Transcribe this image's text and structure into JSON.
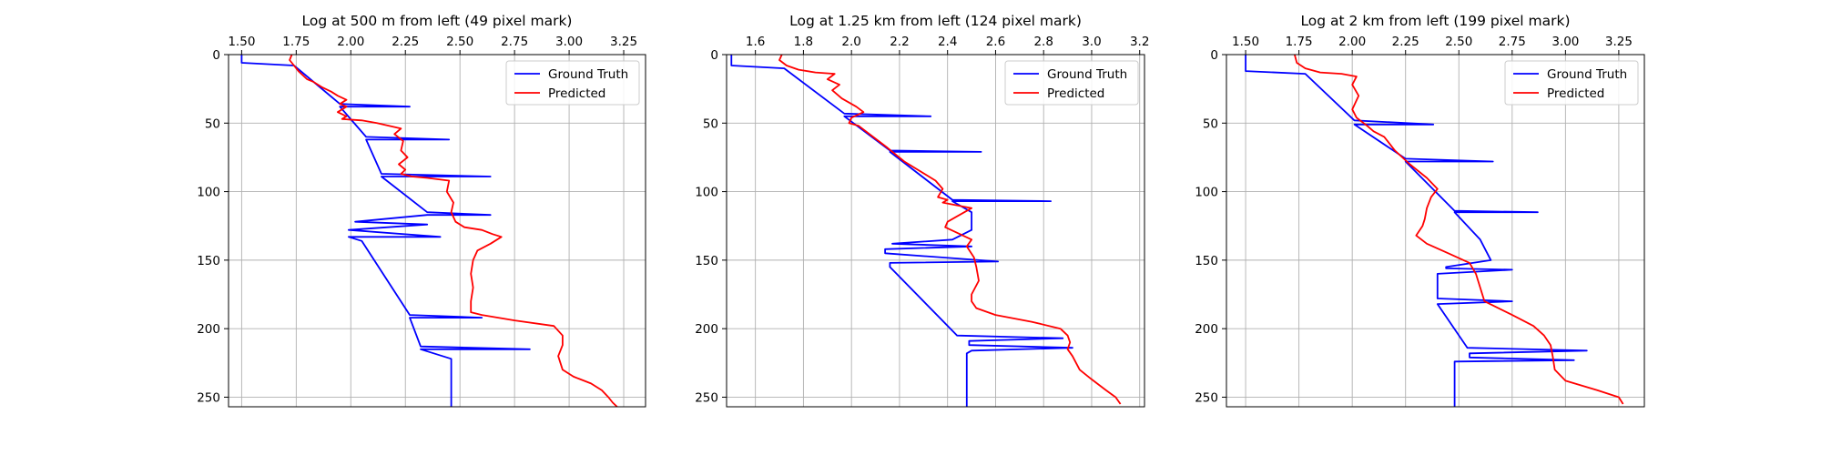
{
  "chart_data": [
    {
      "type": "line",
      "title": "Log at 500 m from left (49 pixel mark)",
      "xlabel": "",
      "ylabel": "",
      "xlim": [
        1.44,
        3.35
      ],
      "ylim": [
        257,
        0
      ],
      "x_ticks": [
        1.5,
        1.75,
        2.0,
        2.25,
        2.5,
        2.75,
        3.0,
        3.25
      ],
      "x_tick_labels": [
        "1.50",
        "1.75",
        "2.00",
        "2.25",
        "2.50",
        "2.75",
        "3.00",
        "3.25"
      ],
      "y_ticks": [
        0,
        50,
        100,
        150,
        200,
        250
      ],
      "y_tick_labels": [
        "0",
        "50",
        "100",
        "150",
        "200",
        "250"
      ],
      "x_axis_position": "top",
      "y_axis_inverted": true,
      "grid": true,
      "legend": "top-right",
      "series": [
        {
          "name": "Ground Truth",
          "color": "#0000ff",
          "x": [
            1.5,
            1.5,
            1.74,
            1.95,
            2.27,
            1.95,
            2.07,
            2.45,
            2.07,
            2.14,
            2.64,
            2.14,
            2.35,
            2.64,
            2.35,
            2.02,
            2.35,
            1.99,
            2.41,
            1.99,
            2.05,
            2.05,
            2.27,
            2.6,
            2.27,
            2.32,
            2.82,
            2.32,
            2.46,
            2.46
          ],
          "y": [
            0,
            6,
            8,
            36,
            38,
            38,
            60,
            62,
            62,
            87,
            89,
            89,
            115,
            117,
            117,
            122,
            124,
            128,
            133,
            133,
            136,
            136,
            190,
            192,
            192,
            213,
            215,
            215,
            222,
            257
          ]
        },
        {
          "name": "Predicted",
          "color": "#ff0000",
          "x": [
            1.73,
            1.72,
            1.74,
            1.76,
            1.78,
            1.8,
            1.83,
            1.87,
            1.91,
            1.94,
            1.98,
            1.95,
            1.98,
            1.94,
            1.98,
            1.96,
            2.05,
            2.12,
            2.23,
            2.2,
            2.24,
            2.23,
            2.26,
            2.22,
            2.25,
            2.23,
            2.28,
            2.35,
            2.45,
            2.44,
            2.47,
            2.46,
            2.48,
            2.52,
            2.6,
            2.65,
            2.69,
            2.64,
            2.58,
            2.56,
            2.55,
            2.56,
            2.55,
            2.55,
            2.6,
            2.75,
            2.93,
            2.97,
            2.97,
            2.95,
            2.96,
            2.97,
            3.02,
            3.1,
            3.15,
            3.18,
            3.2,
            3.22
          ],
          "y": [
            0,
            4,
            8,
            12,
            15,
            18,
            20,
            24,
            27,
            30,
            33,
            36,
            38,
            42,
            45,
            47,
            48,
            50,
            54,
            58,
            63,
            70,
            75,
            80,
            84,
            87,
            89,
            90,
            92,
            100,
            108,
            115,
            122,
            126,
            128,
            131,
            133,
            138,
            143,
            150,
            160,
            170,
            180,
            188,
            190,
            194,
            198,
            205,
            212,
            220,
            225,
            230,
            235,
            240,
            245,
            250,
            254,
            257
          ]
        }
      ]
    },
    {
      "type": "line",
      "title": "Log at 1.25 km from left (124 pixel mark)",
      "xlabel": "",
      "ylabel": "",
      "xlim": [
        1.48,
        3.22
      ],
      "ylim": [
        257,
        0
      ],
      "x_ticks": [
        1.6,
        1.8,
        2.0,
        2.2,
        2.4,
        2.6,
        2.8,
        3.0,
        3.2
      ],
      "x_tick_labels": [
        "1.6",
        "1.8",
        "2.0",
        "2.2",
        "2.4",
        "2.6",
        "2.8",
        "3.0",
        "3.2"
      ],
      "y_ticks": [
        0,
        50,
        100,
        150,
        200,
        250
      ],
      "y_tick_labels": [
        "0",
        "50",
        "100",
        "150",
        "200",
        "250"
      ],
      "x_axis_position": "top",
      "y_axis_inverted": true,
      "grid": true,
      "legend": "top-right",
      "series": [
        {
          "name": "Ground Truth",
          "color": "#0000ff",
          "x": [
            1.5,
            1.5,
            1.72,
            1.97,
            2.33,
            1.97,
            2.16,
            2.54,
            2.16,
            2.42,
            2.83,
            2.42,
            2.5,
            2.5,
            2.42,
            2.17,
            2.5,
            2.14,
            2.14,
            2.61,
            2.16,
            2.16,
            2.44,
            2.88,
            2.49,
            2.49,
            2.92,
            2.5,
            2.48,
            2.48
          ],
          "y": [
            0,
            8,
            10,
            43,
            45,
            45,
            70,
            71,
            71,
            106,
            107,
            107,
            115,
            128,
            135,
            138,
            140,
            142,
            145,
            151,
            152,
            155,
            205,
            207,
            209,
            212,
            214,
            216,
            218,
            257
          ]
        },
        {
          "name": "Predicted",
          "color": "#ff0000",
          "x": [
            1.71,
            1.7,
            1.73,
            1.78,
            1.85,
            1.93,
            1.9,
            1.95,
            1.92,
            1.96,
            2.02,
            2.05,
            2.0,
            1.99,
            2.03,
            2.09,
            2.15,
            2.22,
            2.35,
            2.38,
            2.36,
            2.4,
            2.38,
            2.5,
            2.44,
            2.4,
            2.39,
            2.44,
            2.5,
            2.48,
            2.51,
            2.52,
            2.53,
            2.5,
            2.5,
            2.52,
            2.6,
            2.75,
            2.87,
            2.9,
            2.91,
            2.9,
            2.92,
            2.95,
            3.0,
            3.06,
            3.1,
            3.12
          ],
          "y": [
            0,
            4,
            8,
            11,
            13,
            14,
            18,
            22,
            26,
            32,
            38,
            42,
            46,
            50,
            52,
            60,
            68,
            78,
            92,
            98,
            104,
            106,
            108,
            112,
            118,
            122,
            126,
            130,
            135,
            140,
            148,
            155,
            165,
            175,
            180,
            185,
            190,
            195,
            200,
            205,
            210,
            215,
            220,
            230,
            237,
            245,
            250,
            255
          ]
        }
      ]
    },
    {
      "type": "line",
      "title": "Log at 2 km from left (199 pixel mark)",
      "xlabel": "",
      "ylabel": "",
      "xlim": [
        1.41,
        3.37
      ],
      "ylim": [
        257,
        0
      ],
      "x_ticks": [
        1.5,
        1.75,
        2.0,
        2.25,
        2.5,
        2.75,
        3.0,
        3.25
      ],
      "x_tick_labels": [
        "1.50",
        "1.75",
        "2.00",
        "2.25",
        "2.50",
        "2.75",
        "3.00",
        "3.25"
      ],
      "y_ticks": [
        0,
        50,
        100,
        150,
        200,
        250
      ],
      "y_tick_labels": [
        "0",
        "50",
        "100",
        "150",
        "200",
        "250"
      ],
      "x_axis_position": "top",
      "y_axis_inverted": true,
      "grid": true,
      "legend": "top-right",
      "series": [
        {
          "name": "Ground Truth",
          "color": "#0000ff",
          "x": [
            1.5,
            1.5,
            1.78,
            2.01,
            2.38,
            2.01,
            2.25,
            2.66,
            2.25,
            2.48,
            2.87,
            2.48,
            2.6,
            2.65,
            2.44,
            2.44,
            2.75,
            2.4,
            2.4,
            2.75,
            2.4,
            2.54,
            3.1,
            2.55,
            2.55,
            3.04,
            2.48,
            2.48
          ],
          "y": [
            0,
            12,
            14,
            48,
            51,
            51,
            76,
            78,
            78,
            114,
            115,
            115,
            135,
            150,
            155,
            156,
            157,
            160,
            178,
            180,
            182,
            214,
            216,
            218,
            221,
            223,
            224,
            257
          ]
        },
        {
          "name": "Predicted",
          "color": "#ff0000",
          "x": [
            1.73,
            1.74,
            1.78,
            1.85,
            1.95,
            2.02,
            2.0,
            2.03,
            2.0,
            2.02,
            2.07,
            2.1,
            2.15,
            2.2,
            2.27,
            2.35,
            2.4,
            2.37,
            2.35,
            2.34,
            2.33,
            2.3,
            2.35,
            2.45,
            2.55,
            2.58,
            2.6,
            2.62,
            2.75,
            2.85,
            2.9,
            2.93,
            2.94,
            2.95,
            3.0,
            3.15,
            3.25,
            3.27
          ],
          "y": [
            0,
            6,
            10,
            13,
            14,
            16,
            22,
            30,
            40,
            46,
            52,
            56,
            60,
            70,
            80,
            90,
            98,
            104,
            112,
            120,
            125,
            132,
            138,
            145,
            152,
            160,
            170,
            180,
            190,
            198,
            205,
            212,
            220,
            230,
            238,
            245,
            250,
            255
          ]
        }
      ]
    }
  ]
}
